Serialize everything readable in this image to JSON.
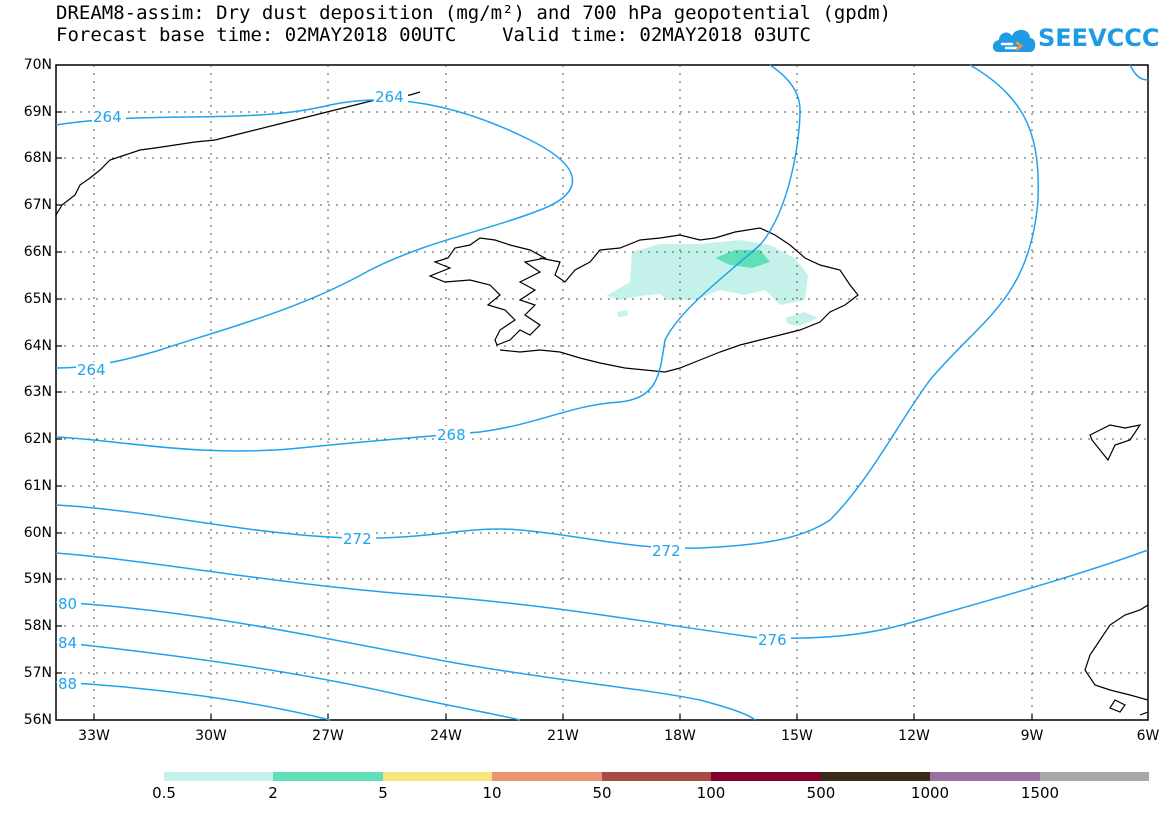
{
  "title": {
    "line1": "DREAM8-assim: Dry dust deposition (mg/m²) and 700 hPa geopotential (gpdm)",
    "line2": "Forecast base time: 02MAY2018 00UTC    Valid time: 02MAY2018 03UTC"
  },
  "logo": {
    "text": "SEEVCCC",
    "icon": "cloud-logo-icon"
  },
  "axes": {
    "lat_labels": [
      "70N",
      "69N",
      "68N",
      "67N",
      "66N",
      "65N",
      "64N",
      "63N",
      "62N",
      "61N",
      "60N",
      "59N",
      "58N",
      "57N",
      "56N"
    ],
    "lon_labels": [
      "33W",
      "30W",
      "27W",
      "24W",
      "21W",
      "18W",
      "15W",
      "12W",
      "9W",
      "6W"
    ]
  },
  "contour_labels": [
    {
      "text": "264"
    },
    {
      "text": "264"
    },
    {
      "text": "264"
    },
    {
      "text": "268"
    },
    {
      "text": "272"
    },
    {
      "text": "272"
    },
    {
      "text": "276"
    },
    {
      "text": "80"
    },
    {
      "text": "84"
    },
    {
      "text": "88"
    }
  ],
  "colorbar": {
    "labels": [
      "0.5",
      "2",
      "5",
      "10",
      "50",
      "100",
      "500",
      "1000",
      "1500"
    ],
    "colors": [
      "#c4f2ea",
      "#5fe0b8",
      "#f8e57e",
      "#ec9472",
      "#a94b45",
      "#820029",
      "#3b2b1a",
      "#9a70a3",
      "#a8a8a8"
    ]
  },
  "colors": {
    "contour": "#1fa3ec",
    "coast": "#000000",
    "grid": "#555555"
  }
}
